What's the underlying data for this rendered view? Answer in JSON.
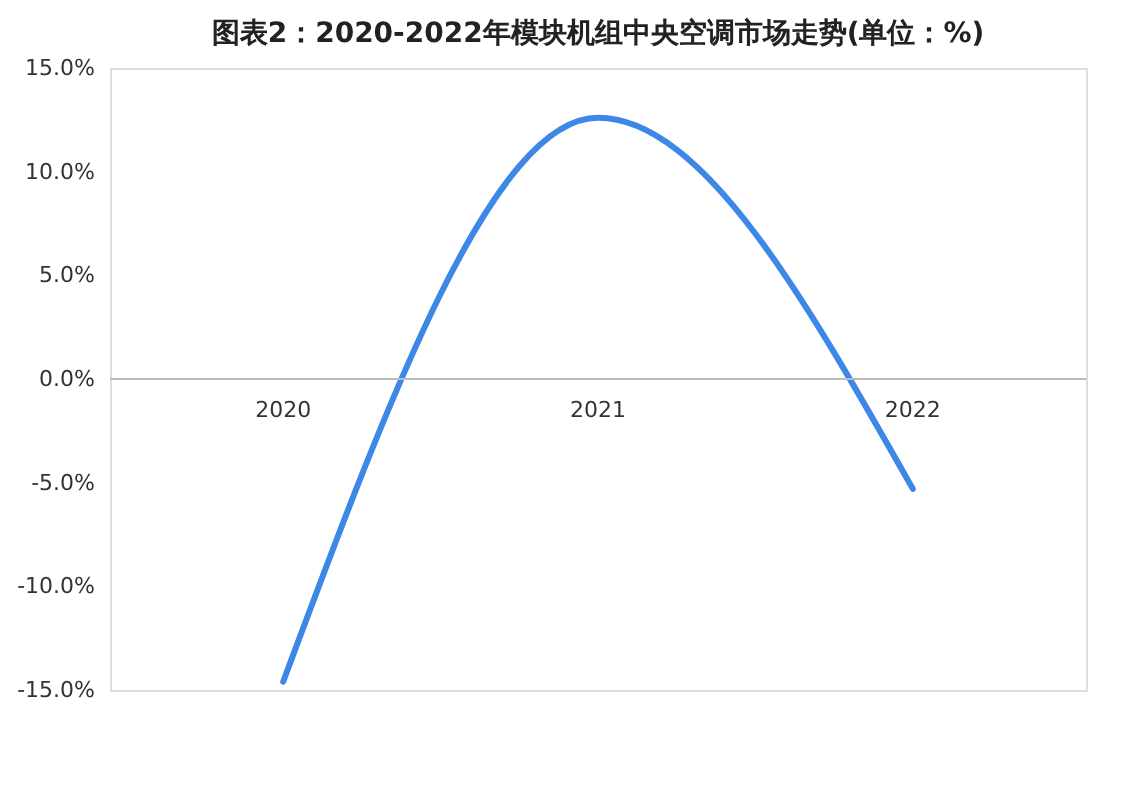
{
  "chart_data": {
    "type": "line",
    "title": "图表2：2020-2022年模块机组中央空调市场走势(单位：%)",
    "categories": [
      "2020",
      "2021",
      "2022"
    ],
    "series": [
      {
        "color": "#3d87e6",
        "values": [
          -14.6,
          12.6,
          -5.3
        ]
      }
    ],
    "ylim": [
      -15,
      15
    ],
    "yticks": [
      {
        "value": -15,
        "label": "-15.0%"
      },
      {
        "value": -10,
        "label": "-10.0%"
      },
      {
        "value": -5,
        "label": "-5.0%"
      },
      {
        "value": 0,
        "label": "0.0%"
      },
      {
        "value": 5,
        "label": "5.0%"
      },
      {
        "value": 10,
        "label": "10.0%"
      },
      {
        "value": 15,
        "label": "15.0%"
      }
    ],
    "grid": false,
    "marker": "none",
    "line_style": "solid"
  }
}
